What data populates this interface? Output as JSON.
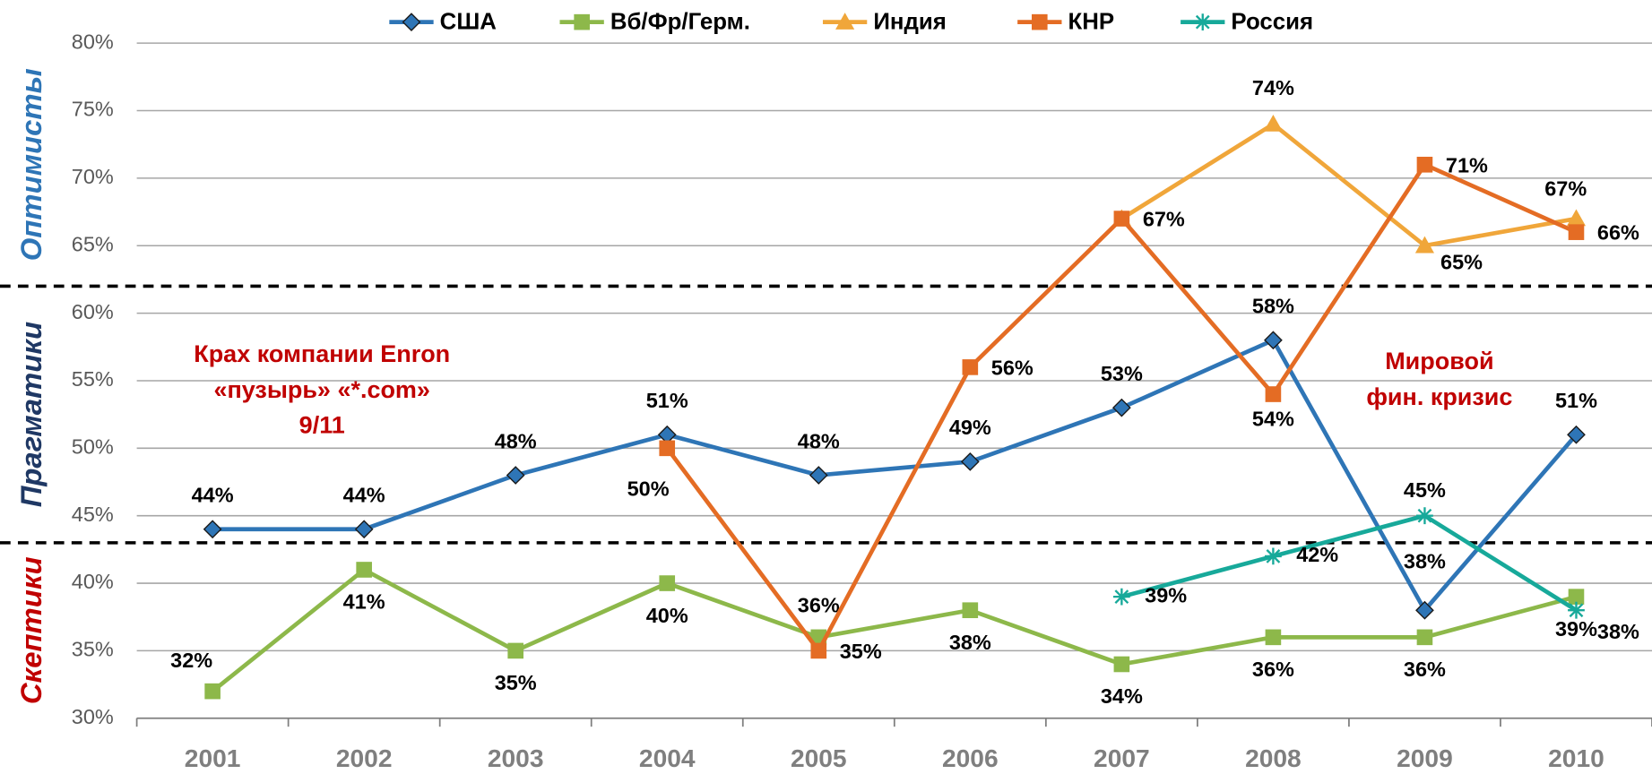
{
  "chart_data": {
    "type": "line",
    "categories": [
      "2001",
      "2002",
      "2003",
      "2004",
      "2005",
      "2006",
      "2007",
      "2008",
      "2009",
      "2010"
    ],
    "series": [
      {
        "name": "США",
        "color": "#2e75b6",
        "marker": "diamond",
        "values": [
          44,
          44,
          48,
          51,
          48,
          49,
          53,
          58,
          38,
          51
        ],
        "value_labels": [
          "44%",
          "44%",
          "48%",
          "51%",
          "48%",
          "49%",
          "53%",
          "58%",
          "38%",
          "51%"
        ]
      },
      {
        "name": "Вб/Фр/Герм.",
        "color": "#8db84a",
        "marker": "square",
        "values": [
          32,
          41,
          35,
          40,
          36,
          38,
          34,
          36,
          36,
          39
        ],
        "value_labels": [
          "32%",
          "41%",
          "35%",
          "40%",
          "36%",
          "38%",
          "34%",
          "36%",
          "36%",
          "39%"
        ]
      },
      {
        "name": "Индия",
        "color": "#f0a63a",
        "marker": "triangle",
        "values": [
          null,
          null,
          null,
          null,
          null,
          null,
          67,
          74,
          65,
          67
        ],
        "value_labels": [
          null,
          null,
          null,
          null,
          null,
          null,
          null,
          "74%",
          "65%",
          "67%"
        ]
      },
      {
        "name": "КНР",
        "color": "#e46c24",
        "marker": "square",
        "values": [
          null,
          null,
          null,
          50,
          35,
          56,
          67,
          54,
          71,
          66
        ],
        "value_labels": [
          null,
          null,
          null,
          "50%",
          "35%",
          "56%",
          "67%",
          "54%",
          "71%",
          "66%"
        ]
      },
      {
        "name": "Россия",
        "color": "#17a99a",
        "marker": "star",
        "values": [
          null,
          null,
          null,
          null,
          null,
          null,
          39,
          42,
          45,
          38
        ],
        "value_labels": [
          null,
          null,
          null,
          null,
          null,
          null,
          "39%",
          "42%",
          "45%",
          "38%"
        ]
      }
    ],
    "ylim": [
      30,
      80
    ],
    "yticks": [
      {
        "value": 30,
        "label": "30%"
      },
      {
        "value": 35,
        "label": "35%"
      },
      {
        "value": 40,
        "label": "40%"
      },
      {
        "value": 45,
        "label": "45%"
      },
      {
        "value": 50,
        "label": "50%"
      },
      {
        "value": 55,
        "label": "55%"
      },
      {
        "value": 60,
        "label": "60%"
      },
      {
        "value": 65,
        "label": "65%"
      },
      {
        "value": 70,
        "label": "70%"
      },
      {
        "value": 75,
        "label": "75%"
      },
      {
        "value": 80,
        "label": "80%"
      }
    ],
    "grid": true,
    "legend": "top",
    "zones": [
      {
        "name": "Оптимисты",
        "color": "#2e75b6",
        "range": [
          62,
          80
        ]
      },
      {
        "name": "Прагматики",
        "color": "#1f3864",
        "range": [
          43,
          62
        ]
      },
      {
        "name": "Скептики",
        "color": "#c00000",
        "range": [
          30,
          43
        ]
      }
    ],
    "annotations": [
      {
        "lines": [
          "Крах компании Enron",
          "«пузырь» «*.com»",
          "9/11"
        ]
      },
      {
        "lines": [
          "Мировой",
          "фин. кризис"
        ]
      }
    ]
  }
}
